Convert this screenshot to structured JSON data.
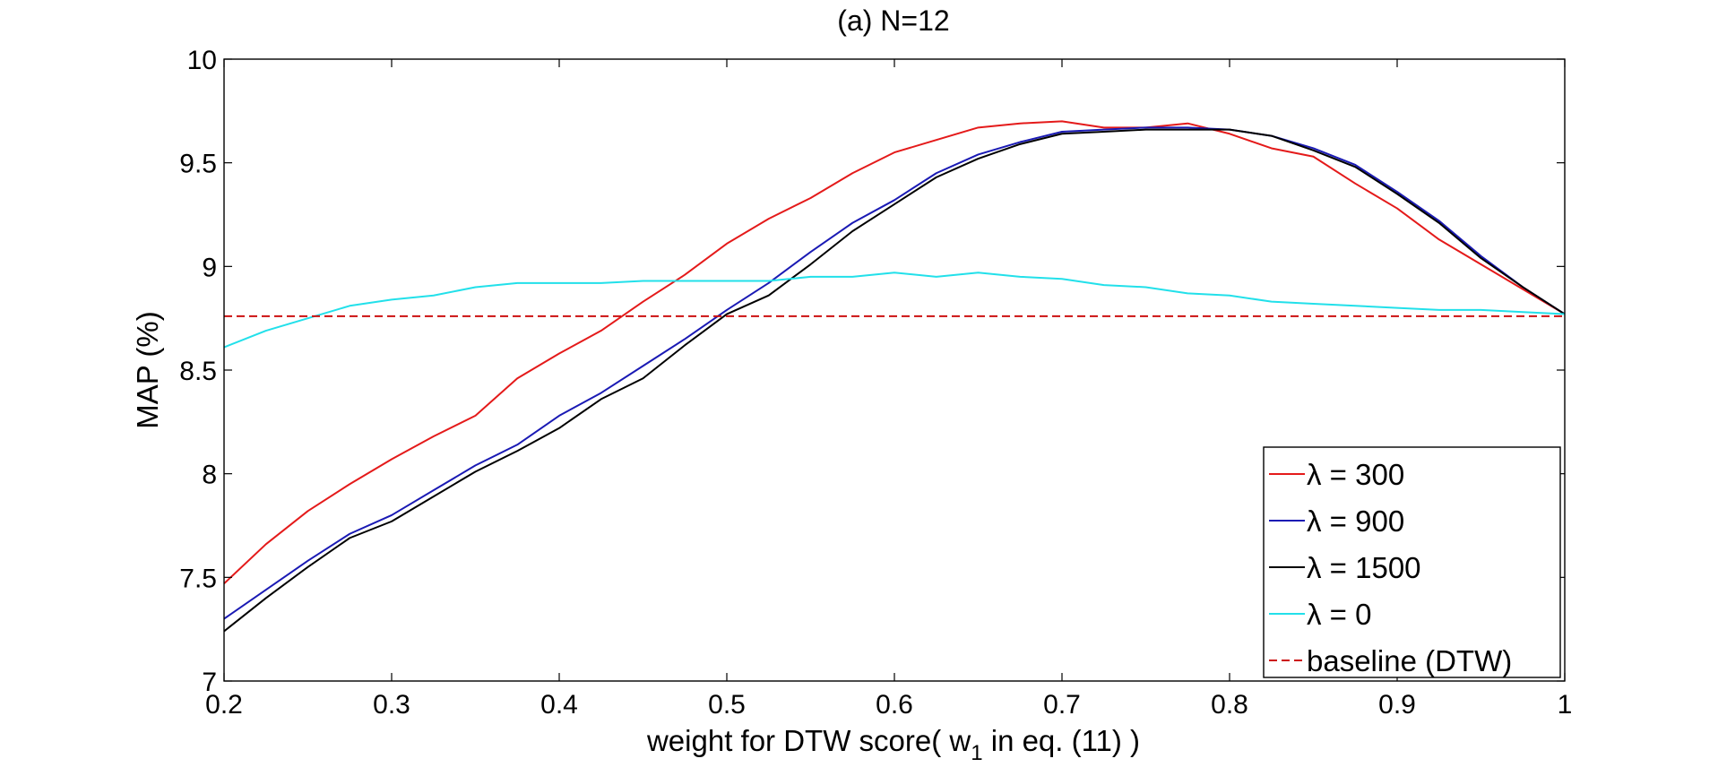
{
  "chart_data": {
    "type": "line",
    "title": "(a) N=12",
    "xlabel": {
      "prefix": "weight for DTW score( w",
      "subscript": "1",
      "suffix": " in eq. (11) )"
    },
    "ylabel": "MAP (%)",
    "xlim": [
      0.2,
      1.0
    ],
    "ylim": [
      7,
      10
    ],
    "x_ticks": [
      0.2,
      0.3,
      0.4,
      0.5,
      0.6,
      0.7,
      0.8,
      0.9,
      1.0
    ],
    "x_tick_labels": [
      "0.2",
      "0.3",
      "0.4",
      "0.5",
      "0.6",
      "0.7",
      "0.8",
      "0.9",
      "1"
    ],
    "y_ticks": [
      7,
      7.5,
      8,
      8.5,
      9,
      9.5,
      10
    ],
    "y_tick_labels": [
      "7",
      "7.5",
      "8",
      "8.5",
      "9",
      "9.5",
      "10"
    ],
    "grid": false,
    "legend_position": "bottom-right",
    "x": [
      0.2,
      0.225,
      0.25,
      0.275,
      0.3,
      0.325,
      0.35,
      0.375,
      0.4,
      0.425,
      0.45,
      0.475,
      0.5,
      0.525,
      0.55,
      0.575,
      0.6,
      0.625,
      0.65,
      0.675,
      0.7,
      0.725,
      0.75,
      0.775,
      0.8,
      0.825,
      0.85,
      0.875,
      0.9,
      0.925,
      0.95,
      0.975,
      1.0
    ],
    "series": [
      {
        "name": "λ = 300",
        "color": "#e41a1a",
        "dash": false,
        "values": [
          7.47,
          7.66,
          7.82,
          7.95,
          8.07,
          8.18,
          8.28,
          8.46,
          8.58,
          8.69,
          8.83,
          8.96,
          9.11,
          9.23,
          9.33,
          9.45,
          9.55,
          9.61,
          9.67,
          9.69,
          9.7,
          9.67,
          9.67,
          9.69,
          9.64,
          9.57,
          9.53,
          9.4,
          9.28,
          9.13,
          9.01,
          8.89,
          8.77
        ]
      },
      {
        "name": "λ = 900",
        "color": "#1a1ab4",
        "dash": false,
        "values": [
          7.3,
          7.44,
          7.58,
          7.71,
          7.8,
          7.92,
          8.04,
          8.14,
          8.28,
          8.39,
          8.52,
          8.65,
          8.79,
          8.92,
          9.07,
          9.21,
          9.32,
          9.45,
          9.54,
          9.6,
          9.65,
          9.66,
          9.67,
          9.67,
          9.66,
          9.63,
          9.57,
          9.49,
          9.36,
          9.22,
          9.05,
          8.9,
          8.77
        ]
      },
      {
        "name": "λ = 1500",
        "color": "#000000",
        "dash": false,
        "values": [
          7.24,
          7.4,
          7.55,
          7.69,
          7.77,
          7.89,
          8.01,
          8.11,
          8.22,
          8.36,
          8.46,
          8.62,
          8.77,
          8.86,
          9.01,
          9.17,
          9.3,
          9.43,
          9.52,
          9.59,
          9.64,
          9.65,
          9.66,
          9.66,
          9.66,
          9.63,
          9.56,
          9.48,
          9.35,
          9.21,
          9.04,
          8.9,
          8.77
        ]
      },
      {
        "name": "λ = 0",
        "color": "#22e0ea",
        "dash": false,
        "values": [
          8.61,
          8.69,
          8.75,
          8.81,
          8.84,
          8.86,
          8.9,
          8.92,
          8.92,
          8.92,
          8.93,
          8.93,
          8.93,
          8.93,
          8.95,
          8.95,
          8.97,
          8.95,
          8.97,
          8.95,
          8.94,
          8.91,
          8.9,
          8.87,
          8.86,
          8.83,
          8.82,
          8.81,
          8.8,
          8.79,
          8.79,
          8.78,
          8.77
        ]
      },
      {
        "name": "baseline (DTW)",
        "color": "#cc1111",
        "dash": true,
        "values": [
          8.76,
          8.76,
          8.76,
          8.76,
          8.76,
          8.76,
          8.76,
          8.76,
          8.76,
          8.76,
          8.76,
          8.76,
          8.76,
          8.76,
          8.76,
          8.76,
          8.76,
          8.76,
          8.76,
          8.76,
          8.76,
          8.76,
          8.76,
          8.76,
          8.76,
          8.76,
          8.76,
          8.76,
          8.76,
          8.76,
          8.76,
          8.76,
          8.76
        ]
      }
    ]
  }
}
